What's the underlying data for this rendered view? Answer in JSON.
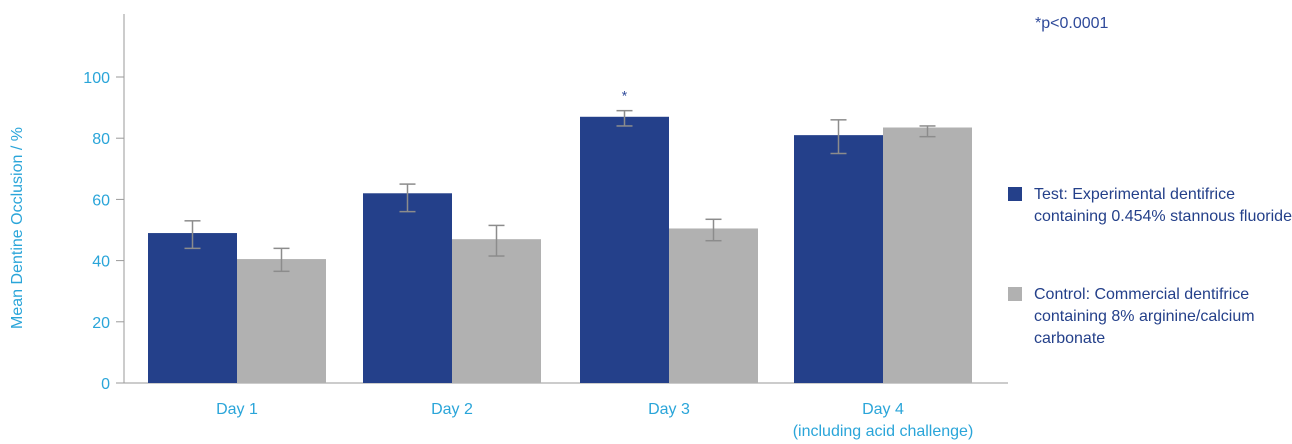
{
  "chart_data": {
    "type": "bar",
    "ylabel": "Mean Dentine Occlusion / %",
    "xlabel": "",
    "ylim": [
      0,
      100
    ],
    "yticks": [
      0,
      20,
      40,
      60,
      80,
      100
    ],
    "categories": [
      "Day 1",
      "Day 2",
      "Day 3",
      "Day 4"
    ],
    "category_sublabels": [
      "",
      "",
      "",
      "(including acid challenge)"
    ],
    "series": [
      {
        "name": "Test: Experimental dentifrice containing 0.454% stannous fluoride",
        "color": "#24408a",
        "values": [
          49,
          62,
          87,
          81
        ],
        "error_low": [
          44,
          56,
          84,
          75
        ],
        "error_high": [
          53,
          65,
          89,
          86
        ]
      },
      {
        "name": "Control: Commercial dentifrice containing 8% arginine/calcium carbonate",
        "color": "#b1b1b1",
        "values": [
          40.5,
          47,
          50.5,
          83.5
        ],
        "error_low": [
          36.5,
          41.5,
          46.5,
          80.5
        ],
        "error_high": [
          44,
          51.5,
          53.5,
          84
        ]
      }
    ],
    "annotations": [
      {
        "text": "*",
        "category": "Day 3",
        "series": 0
      }
    ],
    "note": "*p<0.0001",
    "grid": false,
    "legend_position": "right"
  }
}
